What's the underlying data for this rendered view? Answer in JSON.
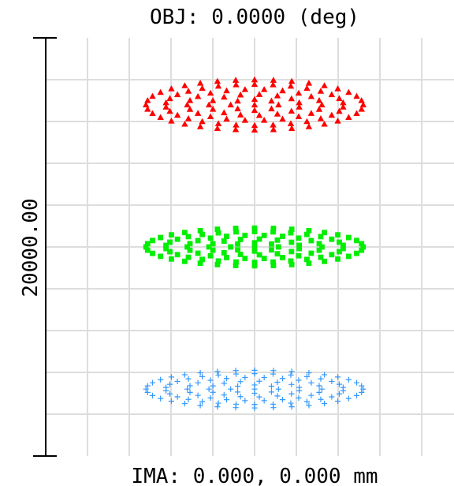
{
  "chart_data": {
    "type": "scatter",
    "title": "OBJ: 0.0000 (deg)",
    "xlabel": "IMA: 0.000, 0.000 mm",
    "scale_label": "20000.00",
    "grid": true,
    "plot_colors": {
      "axis": "#000000",
      "grid": "#dddddd"
    },
    "series": [
      {
        "marker": "triangle",
        "color": "#ff0000",
        "center": [
          0.0,
          3.4
        ],
        "spot_radii": [
          2.6,
          0.6
        ],
        "rings": [
          1.0,
          0.82,
          0.62,
          0.42,
          0.22,
          0.0
        ]
      },
      {
        "marker": "square",
        "color": "#00ee00",
        "center": [
          0.0,
          0.0
        ],
        "spot_radii": [
          2.6,
          0.45
        ],
        "rings": [
          1.0,
          0.82,
          0.62,
          0.42,
          0.22,
          0.0
        ]
      },
      {
        "marker": "plus",
        "color": "#3399ff",
        "center": [
          0.0,
          -3.4
        ],
        "spot_radii": [
          2.6,
          0.45
        ],
        "rings": [
          1.0,
          0.82,
          0.62,
          0.42,
          0.22,
          0.0
        ]
      }
    ]
  }
}
